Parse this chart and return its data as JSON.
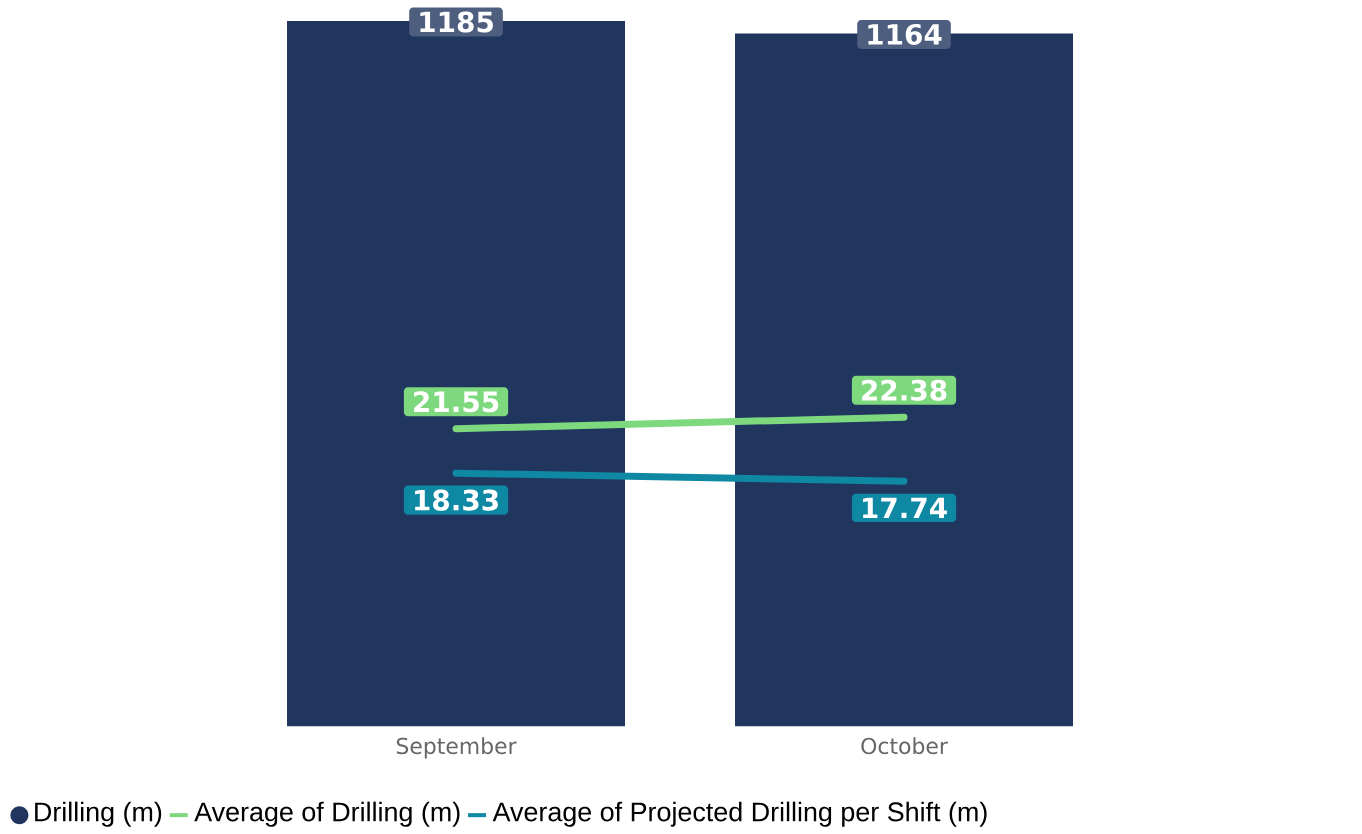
{
  "chart_data": {
    "type": "bar",
    "categories": [
      "September",
      "October"
    ],
    "series": [
      {
        "name": "Drilling (m)",
        "type": "bar",
        "color": "#21365f",
        "values": [
          1185,
          1164
        ]
      },
      {
        "name": "Average of Drilling (m)",
        "type": "line",
        "axis": "y2",
        "color": "#7ed97e",
        "values": [
          21.55,
          22.38
        ]
      },
      {
        "name": "Average of Projected Drilling per Shift (m)",
        "type": "line",
        "axis": "y2",
        "color": "#0e88a3",
        "values": [
          18.33,
          17.74
        ]
      }
    ],
    "ylim": [
      0,
      1220
    ],
    "tick_labels": "x",
    "data_labels": true,
    "legend": "bottom left",
    "grid": false,
    "marker": "none",
    "line_style": "solid"
  }
}
